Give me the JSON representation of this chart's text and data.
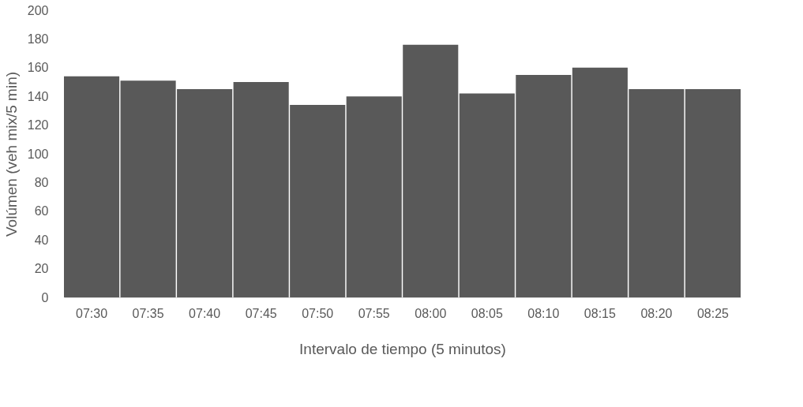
{
  "chart_data": {
    "type": "bar",
    "xlabel": "Intervalo de tiempo (5 minutos)",
    "ylabel": "Volúmen (veh mix/5 min)",
    "categories": [
      "07:30",
      "07:35",
      "07:40",
      "07:45",
      "07:50",
      "07:55",
      "08:00",
      "08:05",
      "08:10",
      "08:15",
      "08:20",
      "08:25"
    ],
    "values": [
      154,
      151,
      145,
      150,
      134,
      140,
      176,
      142,
      155,
      160,
      145,
      145
    ],
    "color": "#595959",
    "ylim": [
      0,
      200
    ],
    "yticks": [
      0,
      20,
      40,
      60,
      80,
      100,
      120,
      140,
      160,
      180,
      200
    ],
    "grid": false
  }
}
